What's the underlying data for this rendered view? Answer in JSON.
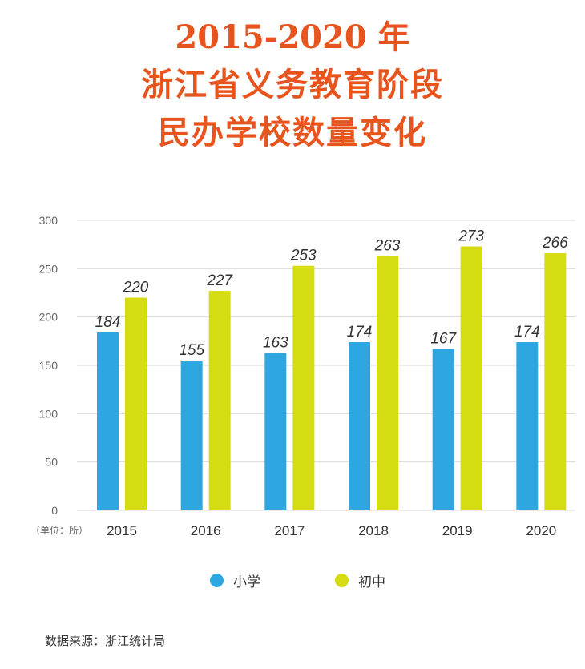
{
  "header": {
    "line1": "2015-2020 年",
    "line2": "浙江省义务教育阶段",
    "line3": "民办学校数量变化"
  },
  "unit_note": "（单位：所）",
  "source": "数据来源：浙江统计局",
  "colors": {
    "primary": "#2ea6e0",
    "middle": "#d6dc12",
    "title": "#e8541e",
    "grid": "#d9d9d9"
  },
  "chart_data": {
    "type": "bar",
    "categories": [
      "2015",
      "2016",
      "2017",
      "2018",
      "2019",
      "2020"
    ],
    "series": [
      {
        "name": "小学",
        "values": [
          184,
          155,
          163,
          174,
          167,
          174
        ]
      },
      {
        "name": "初中",
        "values": [
          220,
          227,
          253,
          263,
          273,
          266
        ]
      }
    ],
    "data_labels": [
      [
        "184",
        "155",
        "163",
        "174",
        "167",
        "174"
      ],
      [
        "220",
        "227",
        "253",
        "263",
        "273",
        "266"
      ]
    ],
    "title": "2015-2020 年 浙江省义务教育阶段 民办学校数量变化",
    "xlabel": "",
    "ylabel": "",
    "ylim": [
      0,
      300
    ],
    "yticks": [
      0,
      50,
      100,
      150,
      200,
      250,
      300
    ],
    "grid": true,
    "legend": "bottom-center"
  }
}
